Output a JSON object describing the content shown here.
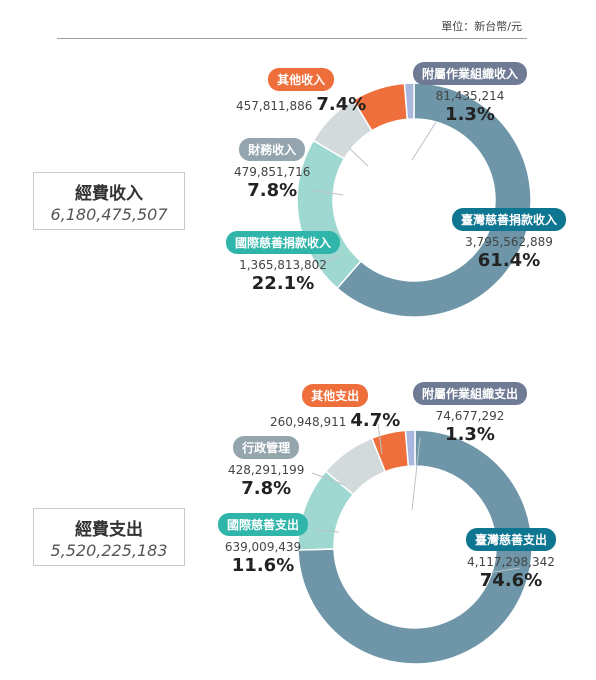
{
  "unit_label": "單位：新台幣/元",
  "chart_data": [
    {
      "type": "pie",
      "title": "經費收入",
      "total": "6,180,475,507",
      "slices": [
        {
          "label": "臺灣慈善捐款收入",
          "amount": "3,795,562,889",
          "percent": "61.4%",
          "value": 61.4,
          "color": "#6e96a8"
        },
        {
          "label": "國際慈善捐款收入",
          "amount": "1,365,813,802",
          "percent": "22.1%",
          "value": 22.1,
          "color": "#9ed8d0"
        },
        {
          "label": "財務收入",
          "amount": "479,851,716",
          "percent": "7.8%",
          "value": 7.8,
          "color": "#d2dadc"
        },
        {
          "label": "其他收入",
          "amount": "457,811,886",
          "percent": "7.4%",
          "value": 7.4,
          "color": "#ee6e3c"
        },
        {
          "label": "附屬作業組織收入",
          "amount": "81,435,214",
          "percent": "1.3%",
          "value": 1.3,
          "color": "#a9b6de"
        }
      ]
    },
    {
      "type": "pie",
      "title": "經費支出",
      "total": "5,520,225,183",
      "slices": [
        {
          "label": "臺灣慈善支出",
          "amount": "4,117,298,342",
          "percent": "74.6%",
          "value": 74.6,
          "color": "#6e96a8"
        },
        {
          "label": "國際慈善支出",
          "amount": "639,009,439",
          "percent": "11.6%",
          "value": 11.6,
          "color": "#9ed8d0"
        },
        {
          "label": "行政管理",
          "amount": "428,291,199",
          "percent": "7.8%",
          "value": 7.8,
          "color": "#d2dadc"
        },
        {
          "label": "其他支出",
          "amount": "260,948,911",
          "percent": "4.7%",
          "value": 4.7,
          "color": "#ee6e3c"
        },
        {
          "label": "附屬作業組織支出",
          "amount": "74,677,292",
          "percent": "1.3%",
          "value": 1.3,
          "color": "#a9b6de"
        }
      ]
    }
  ],
  "pill_colors": {
    "teal_dark": "#0f7691",
    "teal_light": "#2fb5a9",
    "grey": "#94a5ae",
    "orange": "#ee6e3c",
    "slate": "#6f7a94"
  }
}
